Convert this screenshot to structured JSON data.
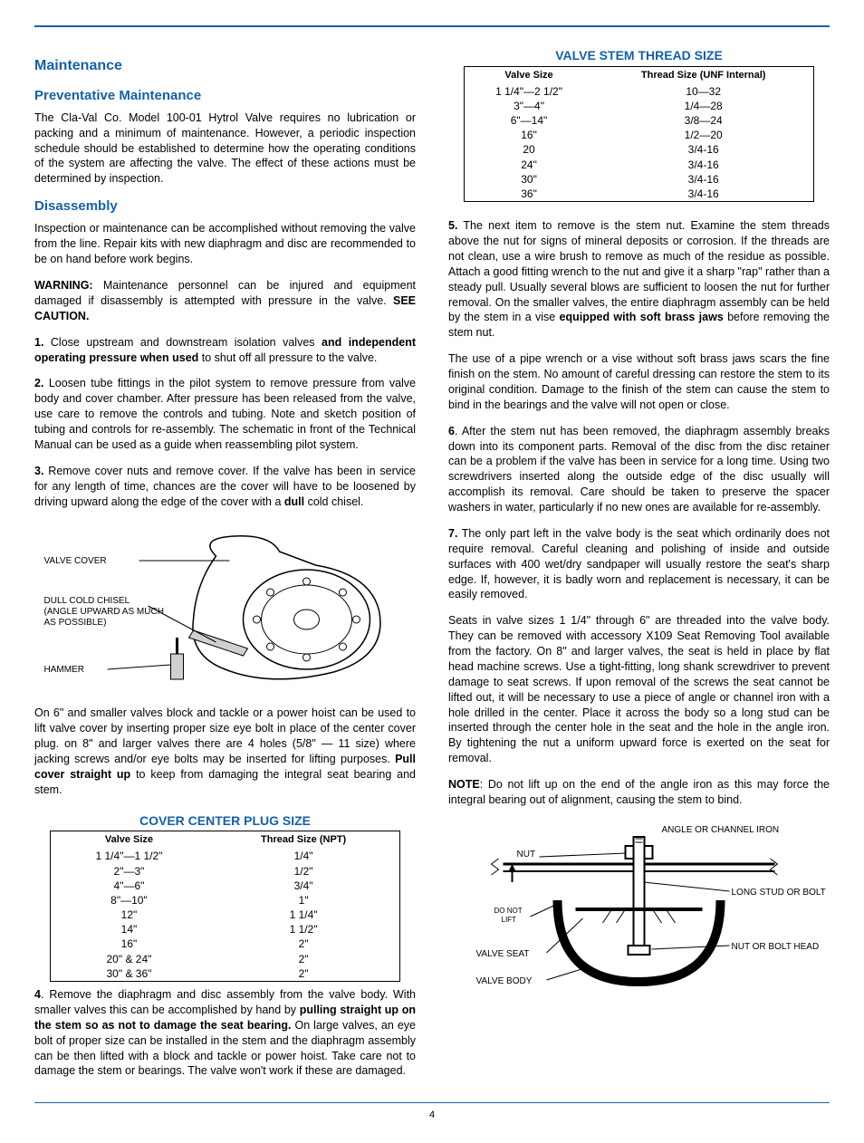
{
  "colors": {
    "accent": "#1560a8",
    "text": "#000000",
    "bg": "#ffffff"
  },
  "page_number": "4",
  "left": {
    "h_maintenance": "Maintenance",
    "h_preventative": "Preventative Maintenance",
    "p_preventative": "The Cla-Val Co. Model 100-01 Hytrol Valve requires no lubrication or packing and a minimum of maintenance. However, a periodic inspection schedule should be established to determine how the operating conditions of the system are affecting the valve. The effect of these actions must be determined by inspection.",
    "h_disassembly": "Disassembly",
    "p_disassembly_intro": "Inspection or maintenance can be accomplished without removing the valve from the line.  Repair kits with new diaphragm and disc are recommended to be on hand before work begins.",
    "warning_label": "WARNING:",
    "warning_text": " Maintenance personnel can be injured and equipment damaged if disassembly is attempted with pressure in the valve. ",
    "warning_see": "SEE CAUTION.",
    "step1_num": "1.",
    "step1_a": " Close upstream and downstream isolation valves ",
    "step1_bold": "and independent operating pressure when used",
    "step1_b": " to shut off all pressure to the valve.",
    "step2_num": "2.",
    "step2": " Loosen tube fittings in the pilot system to remove pressure from valve body and cover chamber. After pressure has been released from the valve, use care to remove the controls and tubing. Note and sketch  position of tubing and controls for re-assembly. The schematic in front of the Technical Manual can be used as a guide when reassembling pilot system.",
    "step3_num": "3.",
    "step3_a": " Remove cover nuts and remove cover. If the valve has been in service for any length of time, chances are the cover will have to be loosened by driving upward along the edge of the cover with a ",
    "step3_bold": "dull",
    "step3_b": " cold chisel.",
    "fig1": {
      "valve_cover": "VALVE COVER",
      "chisel": "DULL COLD CHISEL",
      "chisel2": "(ANGLE UPWARD AS MUCH",
      "chisel3": "AS POSSIBLE)",
      "hammer": "HAMMER"
    },
    "p_after_fig": "On 6\" and smaller valves block and tackle or a power hoist can be used to lift valve cover by inserting proper size eye bolt in place of the center cover plug. on 8\" and larger valves there are 4 holes (5/8\" — 11 size) where jacking screws and/or eye bolts  may be inserted for lifting purposes. ",
    "p_after_fig_bold": "Pull cover straight up",
    "p_after_fig_b": " to keep from damaging the  integral seat bearing and stem.",
    "table1": {
      "caption": "Cover Center Plug Size",
      "h1": "Valve Size",
      "h2": "Thread Size (NPT)",
      "rows": [
        [
          "1 1/4\"—1 1/2\"",
          "1/4\""
        ],
        [
          "2\"—3\"",
          "1/2\""
        ],
        [
          "4\"—6\"",
          "3/4\""
        ],
        [
          "8\"—10\"",
          "1\""
        ],
        [
          "12\"",
          "1 1/4\""
        ],
        [
          "14\"",
          "1 1/2\""
        ],
        [
          "16\"",
          "2\""
        ],
        [
          "20\" & 24\"",
          "2\""
        ],
        [
          "30\" & 36\"",
          "2\""
        ]
      ]
    },
    "step4_num": "4",
    "step4_a": ". Remove the diaphragm and disc assembly from the valve body. With smaller valves this can be accomplished by hand by ",
    "step4_bold": "pulling straight up on the stem so as not to damage the seat bearing.",
    "step4_b": " On large valves, an eye bolt of proper size can be installed in the stem and the diaphragm assembly can be then lifted with a block and tackle or power hoist. Take care not to damage the stem or bearings. The valve won't work if these are damaged."
  },
  "right": {
    "table2": {
      "caption": "Valve Stem Thread Size",
      "h1": "Valve Size",
      "h2": "Thread Size (UNF Internal)",
      "rows": [
        [
          "1 1/4\"—2 1/2\"",
          "10—32"
        ],
        [
          "3\"—4\"",
          "1/4—28"
        ],
        [
          "6\"—14\"",
          "3/8—24"
        ],
        [
          "16\"",
          "1/2—20"
        ],
        [
          "20",
          "3/4-16"
        ],
        [
          "24\"",
          "3/4-16"
        ],
        [
          "30\"",
          "3/4-16"
        ],
        [
          "36\"",
          "3/4-16"
        ]
      ]
    },
    "step5_num": "5.",
    "step5_a": " The next item to remove is the stem nut. Examine the stem threads above the nut for signs of mineral deposits or corrosion. If the threads are not clean, use a wire brush to remove as much of the residue as possible. Attach a good fitting wrench to the nut and give it a sharp \"rap\" rather than a steady pull. Usually several blows are sufficient to loosen the nut for further removal. On the smaller valves, the entire diaphragm assembly can be held by the stem in a vise ",
    "step5_bold": "equipped with soft brass jaws",
    "step5_b": " before removing the stem nut.",
    "p_pipewrench": "The use of a pipe wrench or a vise without soft brass jaws scars the fine finish on the stem. No amount of careful dressing can restore the stem to its original condition. Damage to the finish of the stem can cause the stem to bind in the bearings and the valve will not open or close.",
    "step6_num": "6",
    "step6": ". After the stem nut has been removed, the diaphragm assembly breaks down into its component parts. Removal of the disc from the disc retainer can be a problem if the valve has been in service for a long time. Using two screwdrivers inserted along the outside edge of the disc usually will accomplish its removal. Care should be taken to preserve the spacer washers in water, particularly if no new ones are available for re-assembly.",
    "step7_num": "7.",
    "step7": " The only part left in the valve body is the seat which ordinarily does not require removal. Careful cleaning and polishing of inside and outside surfaces with 400 wet/dry sandpaper will usually restore the seat's sharp edge. If, however, it is badly worn and replacement is necessary, it can be easily removed.",
    "p_seats": "Seats in valve sizes 1 1/4\" through 6\" are threaded into the valve body.  They can be removed with accessory X109 Seat Removing Tool available from the factory. On 8\" and larger valves, the seat is held in place by flat head machine screws.  Use a tight-fitting, long shank screwdriver to prevent damage to seat screws. If upon removal of the screws the seat cannot be lifted out, it will be necessary to use a piece of angle or channel iron with a hole drilled in the center. Place it across the body so a long stud can be inserted through the  center hole in the seat and the hole in the angle iron. By tightening the nut a uniform upward force is exerted on the seat for removal.",
    "note_label": "NOTE",
    "note": ": Do not lift up on the end of the angle iron as this may force the integral bearing out of alignment, causing the stem to bind.",
    "fig2": {
      "angle_iron": "ANGLE OR CHANNEL IRON",
      "nut": "NUT",
      "long_stud": "LONG STUD OR BOLT",
      "do_not": "DO NOT",
      "lift": "LIFT",
      "nut_head": "NUT OR BOLT HEAD",
      "valve_seat": "VALVE SEAT",
      "valve_body": "VALVE BODY"
    }
  }
}
